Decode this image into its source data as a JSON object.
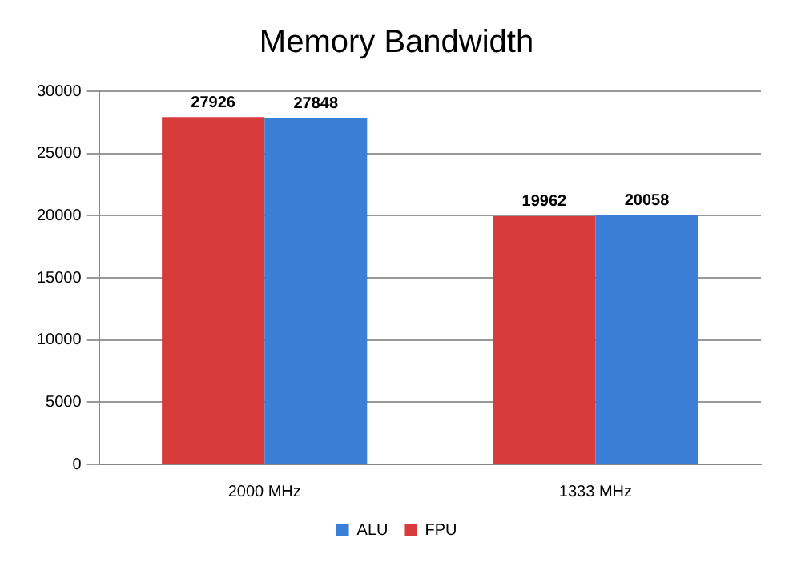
{
  "chart_data": {
    "type": "bar",
    "title": "Memory Bandwidth",
    "categories": [
      "2000 MHz",
      "1333 MHz"
    ],
    "series": [
      {
        "name": "FPU",
        "color": "#d83b3b",
        "values": [
          27926,
          19962
        ]
      },
      {
        "name": "ALU",
        "color": "#3b7ed8",
        "values": [
          27848,
          20058
        ]
      }
    ],
    "ylim": [
      0,
      30000
    ],
    "yticks": [
      0,
      5000,
      10000,
      15000,
      20000,
      25000,
      30000
    ],
    "grid": "y",
    "legend": "bottom",
    "data_labels": true
  }
}
